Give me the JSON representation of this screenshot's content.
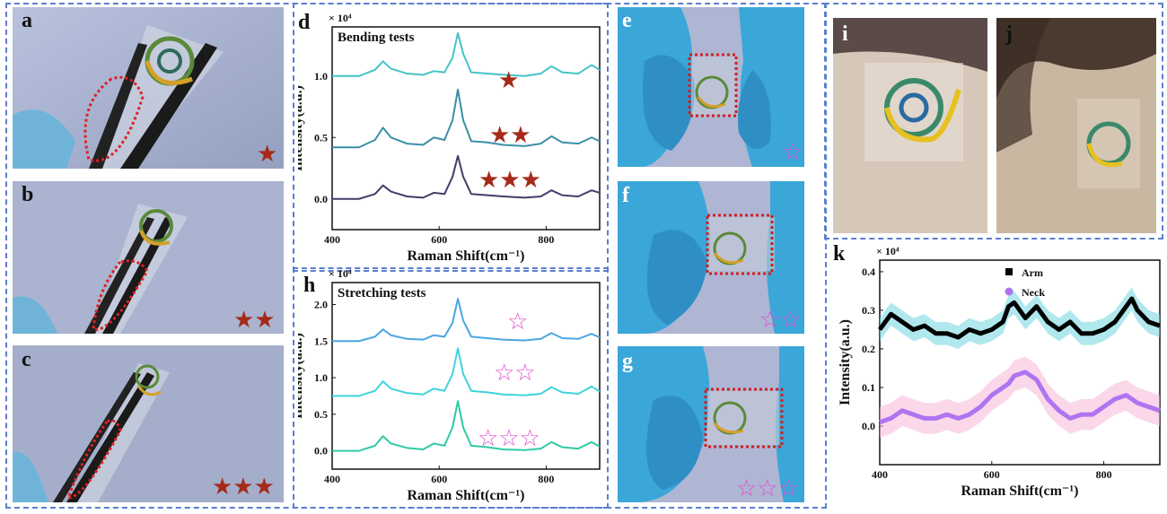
{
  "panels": {
    "a": "a",
    "b": "b",
    "c": "c",
    "d": "d",
    "e": "e",
    "f": "f",
    "g": "g",
    "h": "h",
    "i": "i",
    "j": "j",
    "k": "k"
  },
  "stars": {
    "one_filled": "★",
    "two_filled": "★★",
    "three_filled": "★★★",
    "one_hollow": "☆",
    "two_hollow": "☆☆",
    "three_hollow": "☆☆☆"
  },
  "colors": {
    "frame": "#5b7fd0",
    "star_dark": "#a52a1a",
    "star_pink": "#e24fd0",
    "glove": "#3aa7d8",
    "backdrop_photo": "#a5b0cf",
    "skin": "#d6c8b8"
  },
  "chart_data": [
    {
      "panel": "d",
      "type": "line",
      "title": "Bending tests",
      "multiplier": "× 10⁴",
      "xlabel": "Raman Shift(cm⁻¹)",
      "ylabel": "Intensity(a.u.)",
      "xlim": [
        400,
        900
      ],
      "ylim": [
        -0.25,
        1.4
      ],
      "xticks": [
        400,
        600,
        800
      ],
      "yticks": [
        0.0,
        0.5,
        1.0
      ],
      "x": [
        400,
        450,
        480,
        495,
        510,
        540,
        570,
        590,
        610,
        625,
        635,
        645,
        660,
        690,
        720,
        760,
        790,
        810,
        830,
        860,
        885,
        900
      ],
      "series": [
        {
          "offset": 1.0,
          "color": "#45c3c7",
          "values": [
            0.0,
            0.0,
            0.05,
            0.12,
            0.06,
            0.02,
            0.01,
            0.04,
            0.03,
            0.15,
            0.35,
            0.18,
            0.03,
            0.02,
            0.01,
            0.0,
            0.02,
            0.08,
            0.03,
            0.02,
            0.09,
            0.05
          ]
        },
        {
          "offset": 0.42,
          "color": "#3b8fa6",
          "values": [
            0.0,
            0.0,
            0.06,
            0.16,
            0.08,
            0.03,
            0.02,
            0.08,
            0.06,
            0.22,
            0.47,
            0.22,
            0.05,
            0.04,
            0.02,
            0.01,
            0.03,
            0.09,
            0.04,
            0.03,
            0.08,
            0.05
          ]
        },
        {
          "offset": 0.0,
          "color": "#4a3a6a",
          "values": [
            0.0,
            0.0,
            0.04,
            0.11,
            0.06,
            0.02,
            0.01,
            0.05,
            0.04,
            0.18,
            0.35,
            0.18,
            0.04,
            0.03,
            0.02,
            0.01,
            0.02,
            0.07,
            0.03,
            0.02,
            0.07,
            0.05
          ]
        }
      ]
    },
    {
      "panel": "h",
      "type": "line",
      "title": "Stretching tests",
      "multiplier": "× 10⁴",
      "xlabel": "Raman Shift(cm⁻¹)",
      "ylabel": "Intensity(a.u.)",
      "xlim": [
        400,
        900
      ],
      "ylim": [
        -0.25,
        2.3
      ],
      "xticks": [
        400,
        600,
        800
      ],
      "yticks": [
        0.0,
        0.5,
        1.0,
        1.5,
        2.0
      ],
      "x": [
        400,
        450,
        480,
        495,
        510,
        540,
        570,
        590,
        610,
        625,
        635,
        645,
        660,
        690,
        720,
        760,
        790,
        810,
        830,
        860,
        885,
        900
      ],
      "series": [
        {
          "offset": 1.5,
          "color": "#4aa6e0",
          "values": [
            0.0,
            0.0,
            0.06,
            0.16,
            0.08,
            0.03,
            0.02,
            0.08,
            0.06,
            0.25,
            0.58,
            0.28,
            0.06,
            0.04,
            0.02,
            0.01,
            0.03,
            0.11,
            0.04,
            0.03,
            0.1,
            0.05
          ]
        },
        {
          "offset": 0.75,
          "color": "#3fd4dc",
          "values": [
            0.0,
            0.0,
            0.07,
            0.2,
            0.1,
            0.04,
            0.02,
            0.1,
            0.07,
            0.3,
            0.65,
            0.3,
            0.07,
            0.05,
            0.02,
            0.01,
            0.03,
            0.12,
            0.05,
            0.03,
            0.13,
            0.06
          ]
        },
        {
          "offset": 0.0,
          "color": "#2fc9a6",
          "values": [
            0.0,
            0.0,
            0.07,
            0.2,
            0.1,
            0.04,
            0.02,
            0.1,
            0.07,
            0.32,
            0.68,
            0.32,
            0.07,
            0.05,
            0.02,
            0.01,
            0.03,
            0.12,
            0.05,
            0.03,
            0.12,
            0.06
          ]
        }
      ]
    },
    {
      "panel": "k",
      "type": "line",
      "multiplier": "× 10⁴",
      "xlabel": "Raman Shift(cm⁻¹)",
      "ylabel": "Intensity(a.u.)",
      "xlim": [
        400,
        900
      ],
      "ylim": [
        -0.1,
        0.43
      ],
      "xticks": [
        400,
        600,
        800
      ],
      "yticks": [
        0.0,
        0.1,
        0.2,
        0.3,
        0.4
      ],
      "legend": "top-center",
      "x": [
        400,
        420,
        440,
        460,
        480,
        500,
        520,
        540,
        560,
        580,
        600,
        620,
        630,
        640,
        660,
        680,
        700,
        720,
        740,
        760,
        780,
        800,
        820,
        840,
        850,
        860,
        880,
        900
      ],
      "series": [
        {
          "name": "Arm",
          "color": "#000000",
          "band": "#6fd6e0",
          "band_width": 0.03,
          "marker": "square",
          "values": [
            0.25,
            0.29,
            0.27,
            0.25,
            0.26,
            0.24,
            0.24,
            0.23,
            0.25,
            0.24,
            0.25,
            0.27,
            0.31,
            0.32,
            0.28,
            0.31,
            0.27,
            0.25,
            0.27,
            0.24,
            0.24,
            0.25,
            0.27,
            0.31,
            0.33,
            0.3,
            0.27,
            0.26
          ]
        },
        {
          "name": "Neck",
          "color": "#b074f0",
          "band": "#f7b6d9",
          "band_width": 0.04,
          "marker": "circle",
          "values": [
            0.01,
            0.02,
            0.04,
            0.03,
            0.02,
            0.02,
            0.03,
            0.02,
            0.03,
            0.05,
            0.08,
            0.1,
            0.11,
            0.13,
            0.14,
            0.12,
            0.07,
            0.04,
            0.02,
            0.03,
            0.03,
            0.05,
            0.07,
            0.08,
            0.07,
            0.06,
            0.05,
            0.04
          ]
        }
      ]
    }
  ]
}
